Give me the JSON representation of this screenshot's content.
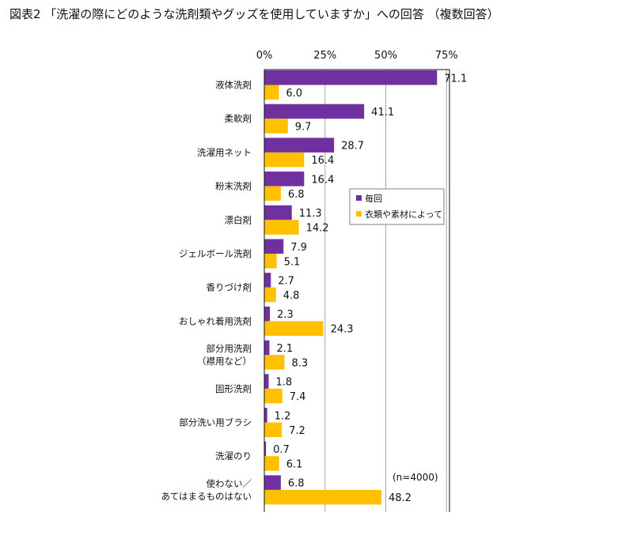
{
  "chart_data": {
    "type": "bar",
    "orientation": "horizontal",
    "title": "図表2 「洗濯の際にどのような洗剤類やグッズを使用していますか」への回答 （複数回答）",
    "categories": [
      [
        "液体洗剤"
      ],
      [
        "柔軟剤"
      ],
      [
        "洗濯用ネット"
      ],
      [
        "粉末洗剤"
      ],
      [
        "漂白剤"
      ],
      [
        "ジェルボール洗剤"
      ],
      [
        "香りづけ剤"
      ],
      [
        "おしゃれ着用洗剤"
      ],
      [
        "部分用洗剤",
        "（襟用など）"
      ],
      [
        "固形洗剤"
      ],
      [
        "部分洗い用ブラシ"
      ],
      [
        "洗濯のり"
      ],
      [
        "使わない／",
        "あてはまるものはない"
      ]
    ],
    "series": [
      {
        "name": "毎回",
        "color": "#7030a0",
        "values": [
          71.1,
          41.1,
          28.7,
          16.4,
          11.3,
          7.9,
          2.7,
          2.3,
          2.1,
          1.8,
          1.2,
          0.7,
          6.8
        ]
      },
      {
        "name": "衣類や素材によって",
        "color": "#ffc000",
        "values": [
          6.0,
          9.7,
          16.4,
          6.8,
          14.2,
          5.1,
          4.8,
          24.3,
          8.3,
          7.4,
          7.2,
          6.1,
          48.2
        ]
      }
    ],
    "xlim": [
      0,
      75
    ],
    "xticks": [
      "0%",
      "25%",
      "50%",
      "75%"
    ],
    "xtick_values": [
      0,
      25,
      50,
      75
    ],
    "grid": true,
    "legend_position": "right",
    "note": "(n=4000)"
  }
}
